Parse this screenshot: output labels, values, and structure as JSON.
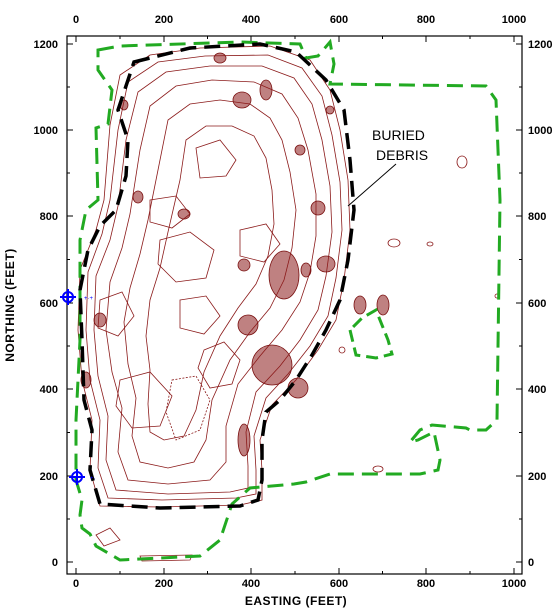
{
  "map": {
    "xlabel": "EASTING (FEET)",
    "ylabel": "NORTHING (FEET)",
    "x_ticks": [
      "0",
      "200",
      "400",
      "600",
      "800",
      "1000"
    ],
    "y_ticks": [
      "0",
      "200",
      "400",
      "600",
      "800",
      "1000",
      "1200"
    ],
    "annotation": [
      "BURIED",
      "DEBRIS"
    ],
    "colors": {
      "contour": "#8b1a1a",
      "site_boundary": "#22aa22",
      "debris_boundary": "#000000",
      "marker": "#0000ff"
    },
    "xlim": [
      0,
      1000
    ],
    "ylim": [
      0,
      1200
    ]
  }
}
